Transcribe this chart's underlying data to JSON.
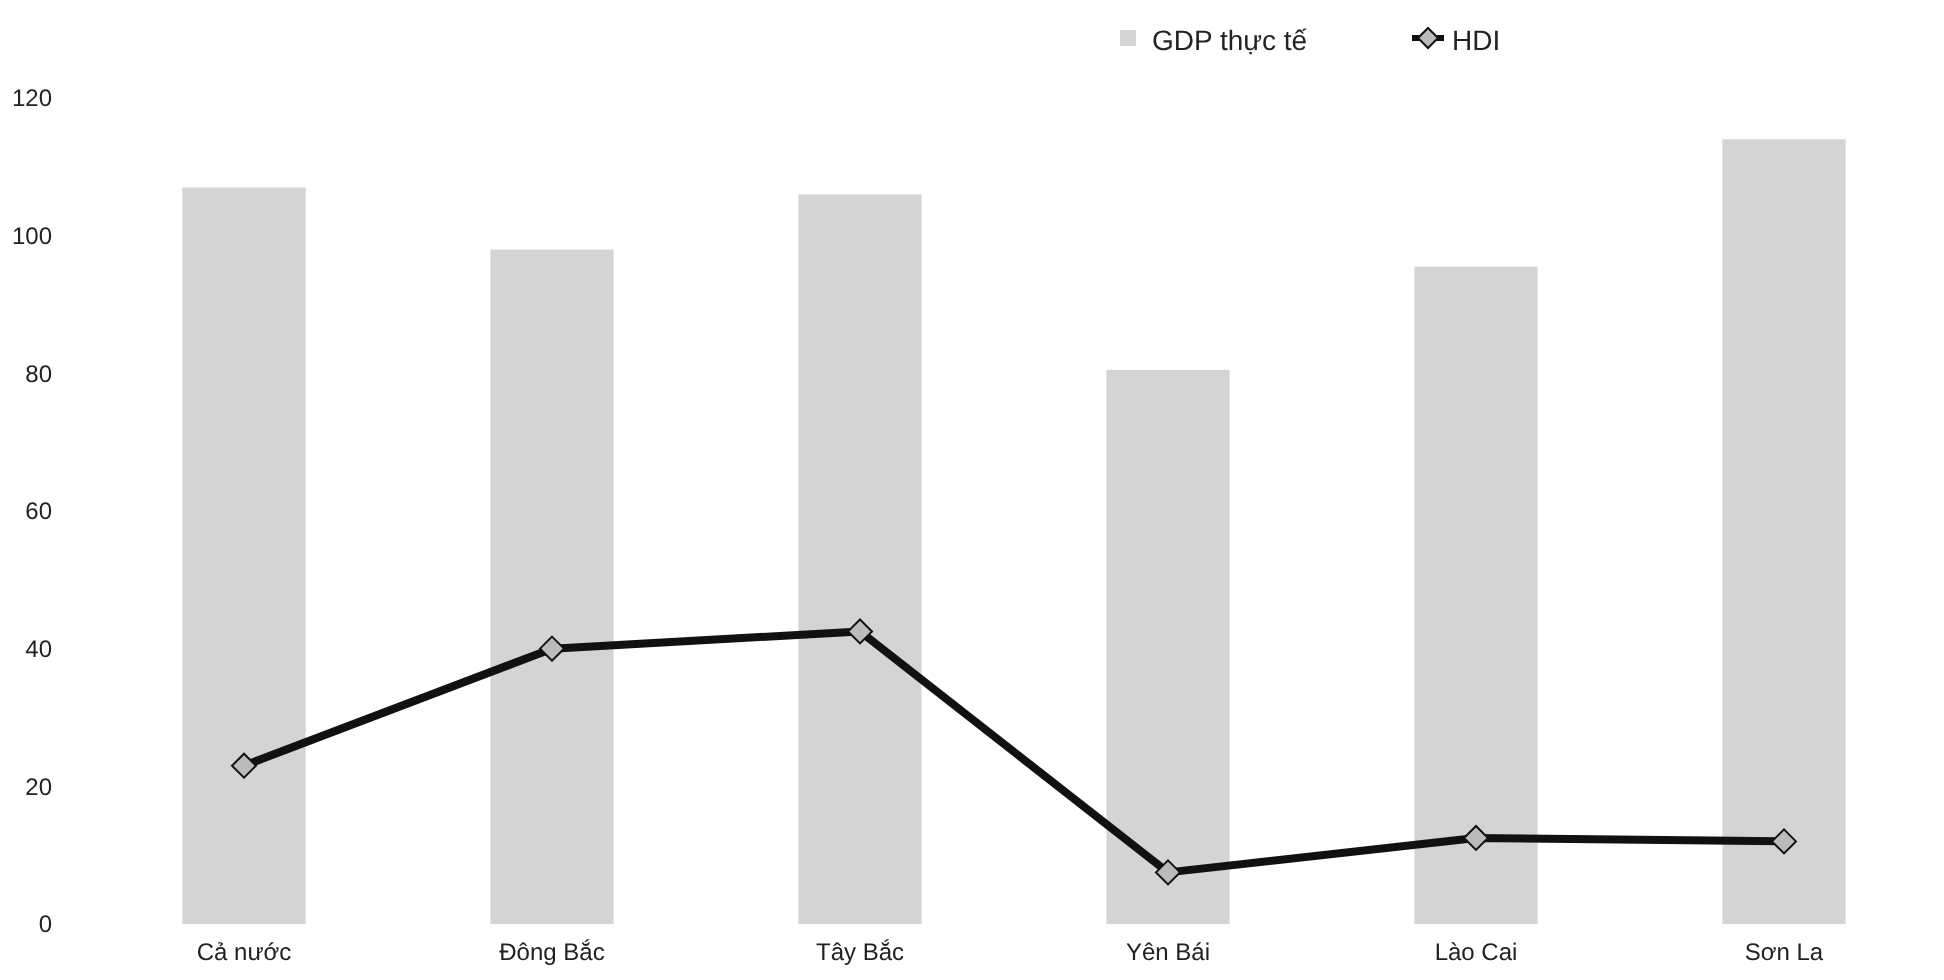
{
  "chart_data": {
    "type": "bar",
    "categories": [
      "Cả nước",
      "Đông Bắc",
      "Tây Bắc",
      "Yên Bái",
      "Lào Cai",
      "Sơn La"
    ],
    "series": [
      {
        "name": "GDP thực tế",
        "color": "#d4d4d4",
        "values": [
          107,
          98,
          106,
          80.5,
          95.5,
          114
        ]
      },
      {
        "name": "HDI",
        "type": "line",
        "color": "#111111",
        "values": [
          23,
          40,
          42.5,
          7.5,
          12.5,
          12
        ]
      }
    ],
    "ylim": [
      0,
      120
    ],
    "yticks": [
      0,
      20,
      40,
      60,
      80,
      100,
      120
    ],
    "grid": false,
    "legend": "top right",
    "marker": "diamond",
    "line_style": "solid"
  }
}
